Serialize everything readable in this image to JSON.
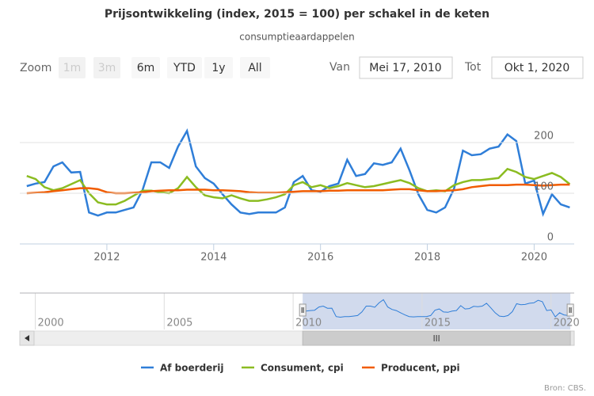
{
  "title": "Prijsontwikkeling (index, 2015 = 100) per schakel in de keten",
  "subtitle": "consumptieaardappelen",
  "range_selector": {
    "zoom_label": "Zoom",
    "buttons": [
      "1m",
      "3m",
      "6m",
      "YTD",
      "1y",
      "All"
    ],
    "disabled": [
      true,
      true,
      false,
      false,
      false,
      false
    ],
    "from_label": "Van",
    "from": "Mei 17, 2010",
    "to_label": "Tot",
    "to": "Okt 1, 2020"
  },
  "chart_data": {
    "type": "line",
    "x": [
      "2010-07",
      "2010-09",
      "2010-11",
      "2011-01",
      "2011-03",
      "2011-05",
      "2011-07",
      "2011-09",
      "2011-11",
      "2012-01",
      "2012-03",
      "2012-05",
      "2012-07",
      "2012-09",
      "2012-11",
      "2013-01",
      "2013-03",
      "2013-05",
      "2013-07",
      "2013-09",
      "2013-11",
      "2014-01",
      "2014-03",
      "2014-05",
      "2014-07",
      "2014-09",
      "2014-11",
      "2015-01",
      "2015-03",
      "2015-05",
      "2015-07",
      "2015-09",
      "2015-11",
      "2016-01",
      "2016-03",
      "2016-05",
      "2016-07",
      "2016-09",
      "2016-11",
      "2017-01",
      "2017-03",
      "2017-05",
      "2017-07",
      "2017-09",
      "2017-11",
      "2018-01",
      "2018-03",
      "2018-05",
      "2018-07",
      "2018-09",
      "2018-11",
      "2019-01",
      "2019-03",
      "2019-05",
      "2019-07",
      "2019-09",
      "2019-11",
      "2020-01",
      "2020-03",
      "2020-05",
      "2020-07",
      "2020-09"
    ],
    "series": [
      {
        "name": "Af boerderij",
        "color": "#2f7ed8",
        "values": [
          114,
          119,
          122,
          153,
          161,
          141,
          142,
          62,
          56,
          62,
          62,
          67,
          72,
          106,
          161,
          161,
          150,
          192,
          223,
          153,
          130,
          119,
          98,
          78,
          62,
          59,
          62,
          62,
          62,
          72,
          122,
          134,
          106,
          103,
          114,
          119,
          166,
          134,
          138,
          159,
          156,
          161,
          188,
          145,
          98,
          67,
          62,
          72,
          109,
          184,
          175,
          177,
          188,
          192,
          216,
          203,
          119,
          125,
          59,
          98,
          78,
          72
        ]
      },
      {
        "name": "Consument, cpi",
        "color": "#8bbc21",
        "values": [
          134,
          128,
          112,
          106,
          110,
          118,
          126,
          100,
          82,
          78,
          78,
          85,
          95,
          105,
          105,
          102,
          100,
          110,
          132,
          112,
          96,
          92,
          90,
          96,
          90,
          85,
          85,
          88,
          92,
          98,
          116,
          122,
          112,
          116,
          110,
          114,
          120,
          116,
          112,
          114,
          118,
          122,
          126,
          120,
          110,
          104,
          106,
          104,
          116,
          122,
          126,
          126,
          128,
          130,
          148,
          142,
          132,
          128,
          134,
          140,
          132,
          118
        ]
      },
      {
        "name": "Producent, ppi",
        "color": "#f15c00",
        "values": [
          100,
          101,
          102,
          104,
          106,
          108,
          110,
          110,
          108,
          102,
          100,
          100,
          101,
          102,
          104,
          105,
          106,
          106,
          107,
          107,
          107,
          106,
          106,
          105,
          104,
          102,
          101,
          101,
          101,
          102,
          103,
          104,
          104,
          104,
          105,
          105,
          106,
          106,
          106,
          106,
          106,
          107,
          108,
          108,
          106,
          104,
          104,
          105,
          106,
          108,
          112,
          114,
          116,
          116,
          116,
          117,
          117,
          116,
          115,
          116,
          117,
          117
        ]
      }
    ],
    "xlim": [
      2010.37,
      2020.75
    ],
    "xticks": [
      2012,
      2014,
      2016,
      2018,
      2020
    ],
    "ylim": [
      0,
      300
    ],
    "yticks": [
      0,
      100,
      200
    ],
    "grid": true,
    "legend": "bottom"
  },
  "navigator": {
    "xlim": [
      1999.4,
      2020.9
    ],
    "xticks": [
      2000,
      2005,
      2010,
      2015,
      2020
    ]
  },
  "credits": "Bron: CBS."
}
